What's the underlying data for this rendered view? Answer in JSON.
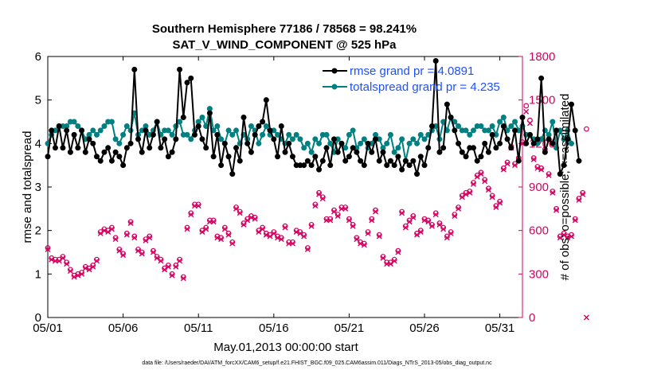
{
  "colors": {
    "rmse": "#000000",
    "totalspread": "#008080",
    "obs": "#d6005f",
    "legend_text": "#1e50ff",
    "axis": "#000000"
  },
  "chart_data": {
    "type": "line",
    "title": "Southern Hemisphere 77186 / 78568 = 98.241%",
    "subtitle": "SAT_V_WIND_COMPONENT @ 525 hPa",
    "xlabel": "May.01,2013 00:00:00 start",
    "ylabel": "rmse and totalspread",
    "y2label": "# of obs: o=possible; ×=assimilated",
    "xlim": [
      0,
      31.5
    ],
    "ylim": [
      0,
      6
    ],
    "y2lim": [
      0,
      1800
    ],
    "xticks": [
      0,
      5,
      10,
      15,
      20,
      25,
      30
    ],
    "xtick_labels": [
      "05/01",
      "05/06",
      "05/11",
      "05/16",
      "05/21",
      "05/26",
      "05/31"
    ],
    "yticks": [
      0,
      1,
      2,
      3,
      4,
      5,
      6
    ],
    "ytick_labels": [
      "0",
      "1",
      "2",
      "3",
      "4",
      "5",
      "6"
    ],
    "y2ticks": [
      0,
      300,
      600,
      900,
      1200,
      1500,
      1800
    ],
    "y2tick_labels": [
      "0",
      "300",
      "600",
      "900",
      "1200",
      "1500",
      "1800"
    ],
    "legend": [
      "rmse grand pr = 4.0891",
      "totalspread grand pr = 4.235"
    ],
    "x_step_days": 0.25,
    "series": [
      {
        "name": "rmse",
        "axis": "left",
        "values": [
          3.7,
          4.3,
          3.9,
          4.4,
          3.9,
          4.3,
          3.8,
          4.2,
          3.9,
          4.3,
          3.8,
          4.1,
          4.0,
          3.7,
          3.6,
          3.8,
          3.9,
          3.6,
          3.8,
          3.7,
          3.5,
          3.9,
          4.0,
          5.7,
          4.1,
          3.8,
          4.3,
          3.9,
          4.2,
          4.5,
          3.9,
          4.1,
          3.7,
          3.8,
          4.1,
          5.7,
          4.6,
          5.4,
          5.5,
          4.2,
          4.4,
          4.1,
          3.9,
          4.7,
          3.7,
          4.2,
          3.5,
          4.0,
          3.7,
          3.3,
          3.9,
          3.6,
          4.6,
          4.0,
          3.8,
          4.2,
          4.4,
          4.5,
          5.0,
          4.3,
          4.1,
          3.7,
          4.4,
          3.8,
          4.0,
          3.7,
          3.5,
          3.5,
          3.5,
          3.6,
          3.5,
          3.7,
          3.4,
          3.6,
          3.9,
          3.5,
          4.1,
          3.8,
          4.0,
          3.6,
          3.7,
          3.9,
          3.8,
          3.6,
          3.5,
          4.0,
          3.8,
          4.1,
          3.6,
          3.8,
          3.5,
          3.6,
          3.5,
          3.7,
          3.4,
          3.6,
          3.5,
          3.6,
          3.3,
          3.7,
          3.5,
          3.9,
          4.4,
          5.9,
          3.8,
          3.9,
          4.9,
          4.6,
          4.3,
          4.0,
          3.8,
          3.7,
          3.9,
          3.9,
          3.6,
          3.7,
          4.0,
          3.8,
          4.2,
          3.9,
          4.0,
          4.4,
          4.1,
          3.9,
          4.3,
          3.6,
          4.6,
          4.0,
          4.2,
          4.0,
          4.1,
          5.5,
          3.8,
          4.1,
          4.0,
          4.3,
          3.3,
          3.5,
          4.1,
          4.9,
          4.3,
          3.6
        ]
      },
      {
        "name": "totalspread",
        "axis": "left",
        "values": [
          4.0,
          4.2,
          4.3,
          4.4,
          4.4,
          4.4,
          4.5,
          4.5,
          4.4,
          4.3,
          4.1,
          4.2,
          4.3,
          4.2,
          4.3,
          4.4,
          4.5,
          4.5,
          4.1,
          4.0,
          4.2,
          4.4,
          4.3,
          4.7,
          4.2,
          4.3,
          4.4,
          4.2,
          4.3,
          4.5,
          4.2,
          4.3,
          4.3,
          4.2,
          4.4,
          4.5,
          4.2,
          4.2,
          4.1,
          4.3,
          4.5,
          4.6,
          4.4,
          4.8,
          4.3,
          4.4,
          4.1,
          4.0,
          4.3,
          4.2,
          4.3,
          4.0,
          4.2,
          4.1,
          4.4,
          4.3,
          4.0,
          4.2,
          4.4,
          4.2,
          4.3,
          4.2,
          4.1,
          4.0,
          4.2,
          4.1,
          4.2,
          4.1,
          3.9,
          4.0,
          3.8,
          4.1,
          4.0,
          4.2,
          4.2,
          4.0,
          3.8,
          4.1,
          4.0,
          3.9,
          4.2,
          4.3,
          3.9,
          4.0,
          4.1,
          3.9,
          4.0,
          4.2,
          4.1,
          3.9,
          4.0,
          4.2,
          3.8,
          3.9,
          4.1,
          3.6,
          4.0,
          4.1,
          4.0,
          4.2,
          4.1,
          4.2,
          4.3,
          4.4,
          4.1,
          4.5,
          4.3,
          4.6,
          4.5,
          4.4,
          4.3,
          4.3,
          4.2,
          4.3,
          4.4,
          4.4,
          4.3,
          4.3,
          4.4,
          4.2,
          4.5,
          4.6,
          4.3,
          4.4,
          4.5,
          4.3,
          4.4,
          4.2,
          4.2,
          4.1,
          4.0,
          4.1,
          4.3,
          4.2,
          4.5,
          3.9,
          4.3,
          4.1,
          4.3,
          4.0
        ]
      },
      {
        "name": "obs possible",
        "axis": "right",
        "marker": "circle",
        "values": [
          480,
          410,
          400,
          400,
          420,
          380,
          330,
          290,
          300,
          310,
          350,
          340,
          360,
          400,
          590,
          610,
          600,
          620,
          550,
          470,
          440,
          580,
          660,
          560,
          470,
          450,
          540,
          560,
          460,
          420,
          400,
          340,
          360,
          300,
          360,
          400,
          280,
          620,
          720,
          780,
          780,
          600,
          620,
          670,
          670,
          560,
          550,
          620,
          580,
          520,
          760,
          730,
          650,
          680,
          700,
          690,
          600,
          620,
          580,
          570,
          590,
          560,
          550,
          630,
          520,
          520,
          600,
          590,
          570,
          480,
          640,
          780,
          860,
          830,
          680,
          680,
          740,
          710,
          760,
          760,
          680,
          640,
          550,
          520,
          510,
          590,
          680,
          740,
          570,
          420,
          380,
          380,
          400,
          460,
          730,
          630,
          670,
          700,
          580,
          600,
          680,
          670,
          640,
          720,
          650,
          620,
          560,
          590,
          710,
          760,
          840,
          860,
          870,
          930,
          980,
          1000,
          950,
          890,
          840,
          770,
          800,
          1030,
          1070,
          1180,
          1060,
          1100,
          1210,
          1460,
          1360,
          1100,
          1040,
          1030,
          1160,
          990,
          870,
          750,
          560,
          580,
          560,
          570,
          680,
          820,
          860,
          1300
        ]
      },
      {
        "name": "obs assimilated",
        "axis": "right",
        "marker": "cross",
        "values": [
          470,
          400,
          390,
          390,
          410,
          370,
          320,
          280,
          290,
          300,
          340,
          330,
          350,
          390,
          580,
          600,
          590,
          610,
          540,
          460,
          430,
          570,
          650,
          550,
          460,
          440,
          530,
          550,
          450,
          410,
          390,
          330,
          350,
          290,
          350,
          390,
          270,
          610,
          710,
          770,
          770,
          590,
          610,
          660,
          660,
          550,
          540,
          610,
          570,
          510,
          750,
          720,
          640,
          670,
          690,
          680,
          590,
          610,
          570,
          560,
          580,
          550,
          540,
          620,
          510,
          510,
          590,
          580,
          560,
          470,
          630,
          770,
          850,
          820,
          670,
          670,
          730,
          700,
          750,
          750,
          670,
          630,
          540,
          510,
          500,
          580,
          670,
          730,
          560,
          410,
          370,
          370,
          390,
          450,
          720,
          620,
          660,
          690,
          570,
          590,
          670,
          660,
          630,
          710,
          640,
          610,
          550,
          580,
          700,
          750,
          830,
          850,
          860,
          920,
          970,
          990,
          940,
          880,
          830,
          760,
          790,
          1020,
          1060,
          1170,
          1050,
          1090,
          1200,
          1420,
          1340,
          1090,
          1030,
          1020,
          1150,
          980,
          860,
          740,
          550,
          570,
          550,
          560,
          670,
          810,
          850,
          0
        ]
      }
    ]
  },
  "footer": "data file: /Users/raeder/DAI/ATM_forcXX/CAM6_setup/f.e21.FHIST_BGC.f09_025.CAM6assim.011/Diags_NTrS_2013-05/obs_diag_output.nc"
}
